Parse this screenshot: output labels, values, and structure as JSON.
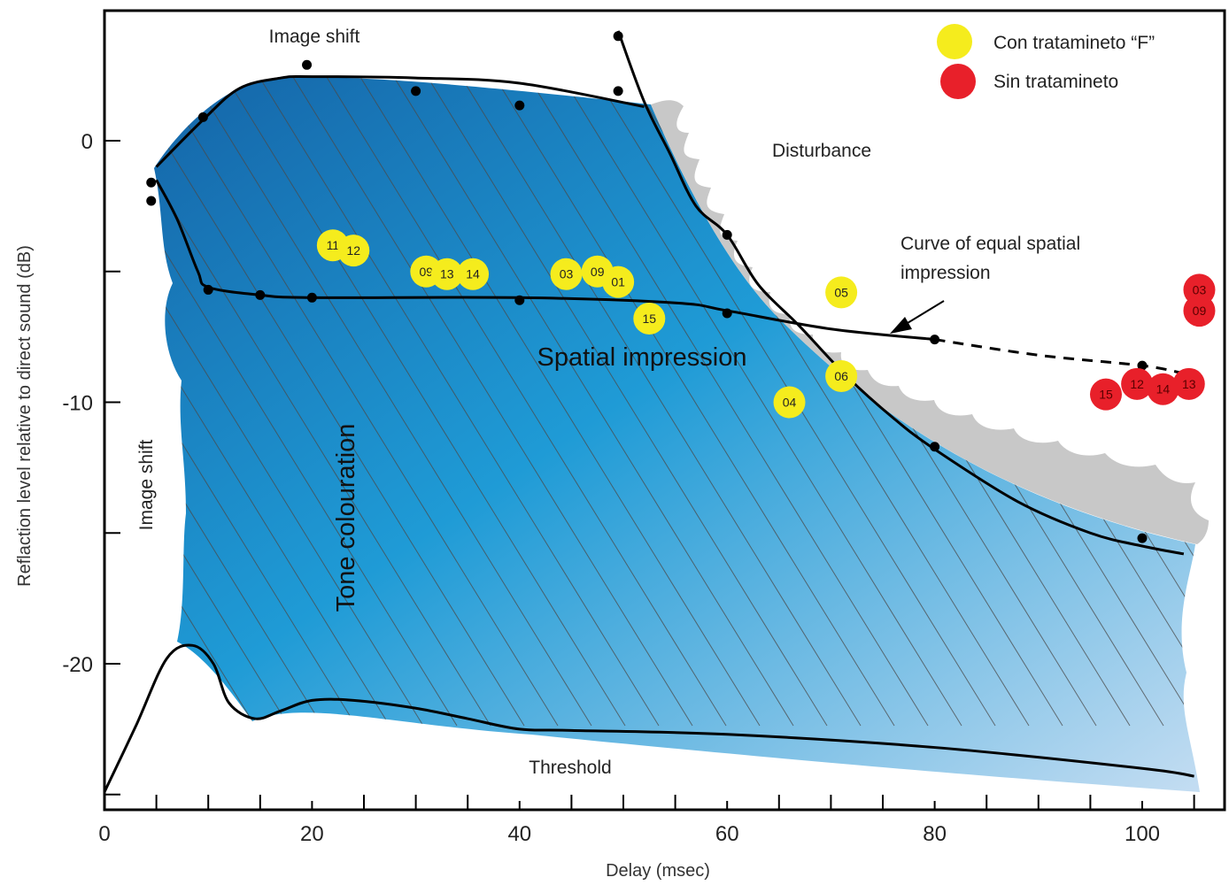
{
  "chart_data": {
    "type": "scatter",
    "xlabel": "Delay (msec)",
    "ylabel": "Reflaction level relative to direct sound (dB)",
    "xlim": [
      0,
      107
    ],
    "ylim": [
      -25.5,
      4.9
    ],
    "x_ticks": [
      0,
      20,
      40,
      60,
      80,
      100
    ],
    "y_ticks": [
      0,
      -10,
      -20
    ],
    "legend_position": "top-right",
    "colors": {
      "region_dark": "#1565a8",
      "region_mid": "#1f9bd6",
      "region_light": "#c4ddf2",
      "disturbance": "#c8c8c8",
      "yellow_marker": "#f5ec1d",
      "red_marker": "#e8202a"
    },
    "region_labels": {
      "image_shift_top": "Image shift",
      "image_shift_left": "Image shift",
      "disturbance": "Disturbance",
      "curve_equal": "Curve of equal spatial",
      "curve_equal_2": "impression",
      "spatial": "Spatial impression",
      "tone": "Tone colouration",
      "threshold": "Threshold"
    },
    "curves": {
      "image_shift_upper": [
        [
          5,
          -1.0
        ],
        [
          9.5,
          0.8
        ],
        [
          13,
          2.0
        ],
        [
          17,
          2.4
        ],
        [
          20,
          2.45
        ],
        [
          30,
          2.4
        ],
        [
          40,
          2.2
        ],
        [
          52,
          1.3
        ]
      ],
      "image_shift_lower": [
        [
          5,
          -1.5
        ],
        [
          7,
          -3.0
        ],
        [
          9,
          -5.0
        ],
        [
          10,
          -5.6
        ],
        [
          15,
          -5.9
        ],
        [
          20,
          -6.0
        ],
        [
          40,
          -6.0
        ],
        [
          55,
          -6.2
        ],
        [
          60,
          -6.5
        ],
        [
          70,
          -7.2
        ],
        [
          80,
          -7.6
        ]
      ],
      "equal_spatial_dashed": [
        [
          80,
          -7.6
        ],
        [
          90,
          -8.2
        ],
        [
          100,
          -8.6
        ],
        [
          104,
          -8.9
        ]
      ],
      "disturbance_curve": [
        [
          49.5,
          4.2
        ],
        [
          52,
          1.5
        ],
        [
          54.5,
          -0.5
        ],
        [
          57,
          -2.5
        ],
        [
          60,
          -3.6
        ],
        [
          63,
          -5.5
        ],
        [
          67,
          -7.1
        ],
        [
          71.5,
          -9.0
        ],
        [
          76,
          -10.6
        ],
        [
          80,
          -11.8
        ],
        [
          88,
          -13.8
        ],
        [
          95,
          -15.0
        ],
        [
          100,
          -15.5
        ],
        [
          104,
          -15.8
        ]
      ],
      "threshold": [
        [
          0,
          -24.9
        ],
        [
          3,
          -22.4
        ],
        [
          6,
          -19.8
        ],
        [
          8.5,
          -19.3
        ],
        [
          10.5,
          -20.0
        ],
        [
          12,
          -21.5
        ],
        [
          14.5,
          -22.1
        ],
        [
          17,
          -21.8
        ],
        [
          20,
          -21.4
        ],
        [
          24,
          -21.4
        ],
        [
          30,
          -21.7
        ],
        [
          35,
          -22.1
        ],
        [
          40,
          -22.5
        ],
        [
          45,
          -22.55
        ],
        [
          60,
          -22.7
        ],
        [
          80,
          -23.2
        ],
        [
          100,
          -24.0
        ],
        [
          105,
          -24.3
        ]
      ]
    },
    "curve_points": [
      {
        "x": 4.5,
        "y": -1.6
      },
      {
        "x": 4.5,
        "y": -2.3
      },
      {
        "x": 9.5,
        "y": 0.9
      },
      {
        "x": 19.5,
        "y": 2.9
      },
      {
        "x": 30,
        "y": 1.9
      },
      {
        "x": 40,
        "y": 1.35
      },
      {
        "x": 49.5,
        "y": 4.0
      },
      {
        "x": 49.5,
        "y": 1.9
      },
      {
        "x": 10,
        "y": -5.7
      },
      {
        "x": 15,
        "y": -5.9
      },
      {
        "x": 20,
        "y": -6.0
      },
      {
        "x": 40,
        "y": -6.1
      },
      {
        "x": 60,
        "y": -6.6
      },
      {
        "x": 80,
        "y": -7.6
      },
      {
        "x": 100,
        "y": -8.6
      },
      {
        "x": 60,
        "y": -3.6
      },
      {
        "x": 80,
        "y": -11.7
      },
      {
        "x": 100,
        "y": -15.2
      }
    ],
    "series": [
      {
        "name": "Con tratamineto “F”",
        "color": "#f5ec1d",
        "points": [
          {
            "label": "11",
            "x": 22,
            "y": -4.0
          },
          {
            "label": "12",
            "x": 24,
            "y": -4.2
          },
          {
            "label": "09",
            "x": 31,
            "y": -5.0
          },
          {
            "label": "13",
            "x": 33,
            "y": -5.1
          },
          {
            "label": "14",
            "x": 35.5,
            "y": -5.1
          },
          {
            "label": "03",
            "x": 44.5,
            "y": -5.1
          },
          {
            "label": "09",
            "x": 47.5,
            "y": -5.0
          },
          {
            "label": "01",
            "x": 49.5,
            "y": -5.4
          },
          {
            "label": "15",
            "x": 52.5,
            "y": -6.8
          },
          {
            "label": "05",
            "x": 71,
            "y": -5.8
          },
          {
            "label": "06",
            "x": 71,
            "y": -9.0
          },
          {
            "label": "04",
            "x": 66,
            "y": -10.0
          }
        ]
      },
      {
        "name": "Sin tratamineto",
        "color": "#e8202a",
        "points": [
          {
            "label": "03",
            "x": 105.5,
            "y": -5.7
          },
          {
            "label": "09",
            "x": 105.5,
            "y": -6.5
          },
          {
            "label": "15",
            "x": 96.5,
            "y": -9.7
          },
          {
            "label": "12",
            "x": 99.5,
            "y": -9.3
          },
          {
            "label": "14",
            "x": 102,
            "y": -9.5
          },
          {
            "label": "13",
            "x": 104.5,
            "y": -9.3
          }
        ]
      }
    ]
  }
}
